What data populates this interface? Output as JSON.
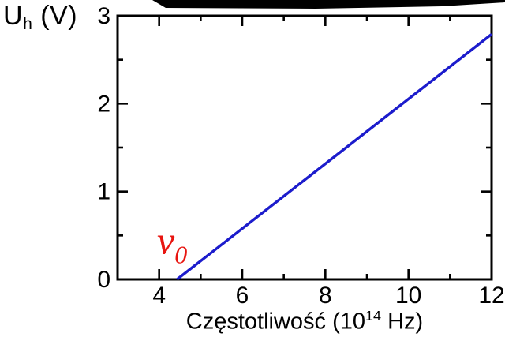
{
  "page": {
    "background": "#ffffff"
  },
  "y_axis_title": {
    "main": "U",
    "sub": "h",
    "rest": " (V)"
  },
  "x_axis_title": {
    "pre": "Częstotliwość (10",
    "sup": "14",
    "post": " Hz)"
  },
  "chart_data": {
    "type": "line",
    "title": "",
    "xlabel": "Częstotliwość (10^14 Hz)",
    "ylabel": "U_h (V)",
    "xlim": [
      3,
      12
    ],
    "ylim": [
      0,
      3
    ],
    "x_major_ticks": [
      4,
      6,
      8,
      10,
      12
    ],
    "x_minor_ticks": [
      5,
      7,
      9,
      11
    ],
    "y_major_ticks": [
      0,
      1,
      2,
      3
    ],
    "y_minor_ticks": [
      0.5,
      1.5,
      2.5
    ],
    "grid": false,
    "legend": false,
    "frame": "closed box with inward ticks on all four sides",
    "axis_color": "#000000",
    "series": [
      {
        "name": "stopping-voltage-vs-frequency",
        "color": "#1c1ccc",
        "points": [
          [
            4.43,
            0.0
          ],
          [
            12.0,
            2.79
          ]
        ]
      }
    ],
    "annotations": [
      {
        "id": "threshold-frequency",
        "symbol": "ν",
        "subscript": "0",
        "x": 3.95,
        "y": 0.29,
        "color": "#e81510"
      }
    ],
    "threshold_frequency_1e14_hz": 4.43
  },
  "artifact": {
    "top_strip_color": "#000000"
  }
}
